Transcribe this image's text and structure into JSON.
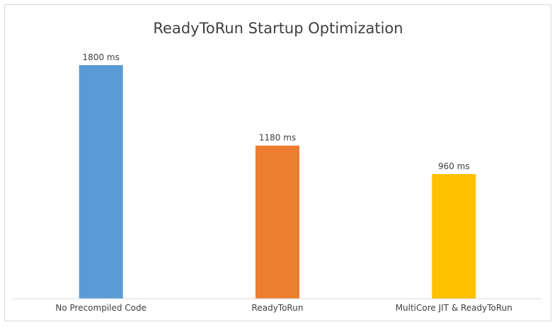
{
  "chart_data": {
    "type": "bar",
    "title": "ReadyToRun Startup Optimization",
    "xlabel": "",
    "ylabel": "",
    "categories": [
      "No Precompiled Code",
      "ReadyToRun",
      "MultiCore JIT & ReadyToRun"
    ],
    "values": [
      1800,
      1180,
      960
    ],
    "data_labels": [
      "1800 ms",
      "1180 ms",
      "960 ms"
    ],
    "colors": [
      "#5b9bd5",
      "#ed7d31",
      "#ffc000"
    ],
    "ylim": [
      0,
      2000
    ],
    "grid": false,
    "legend": "none"
  }
}
